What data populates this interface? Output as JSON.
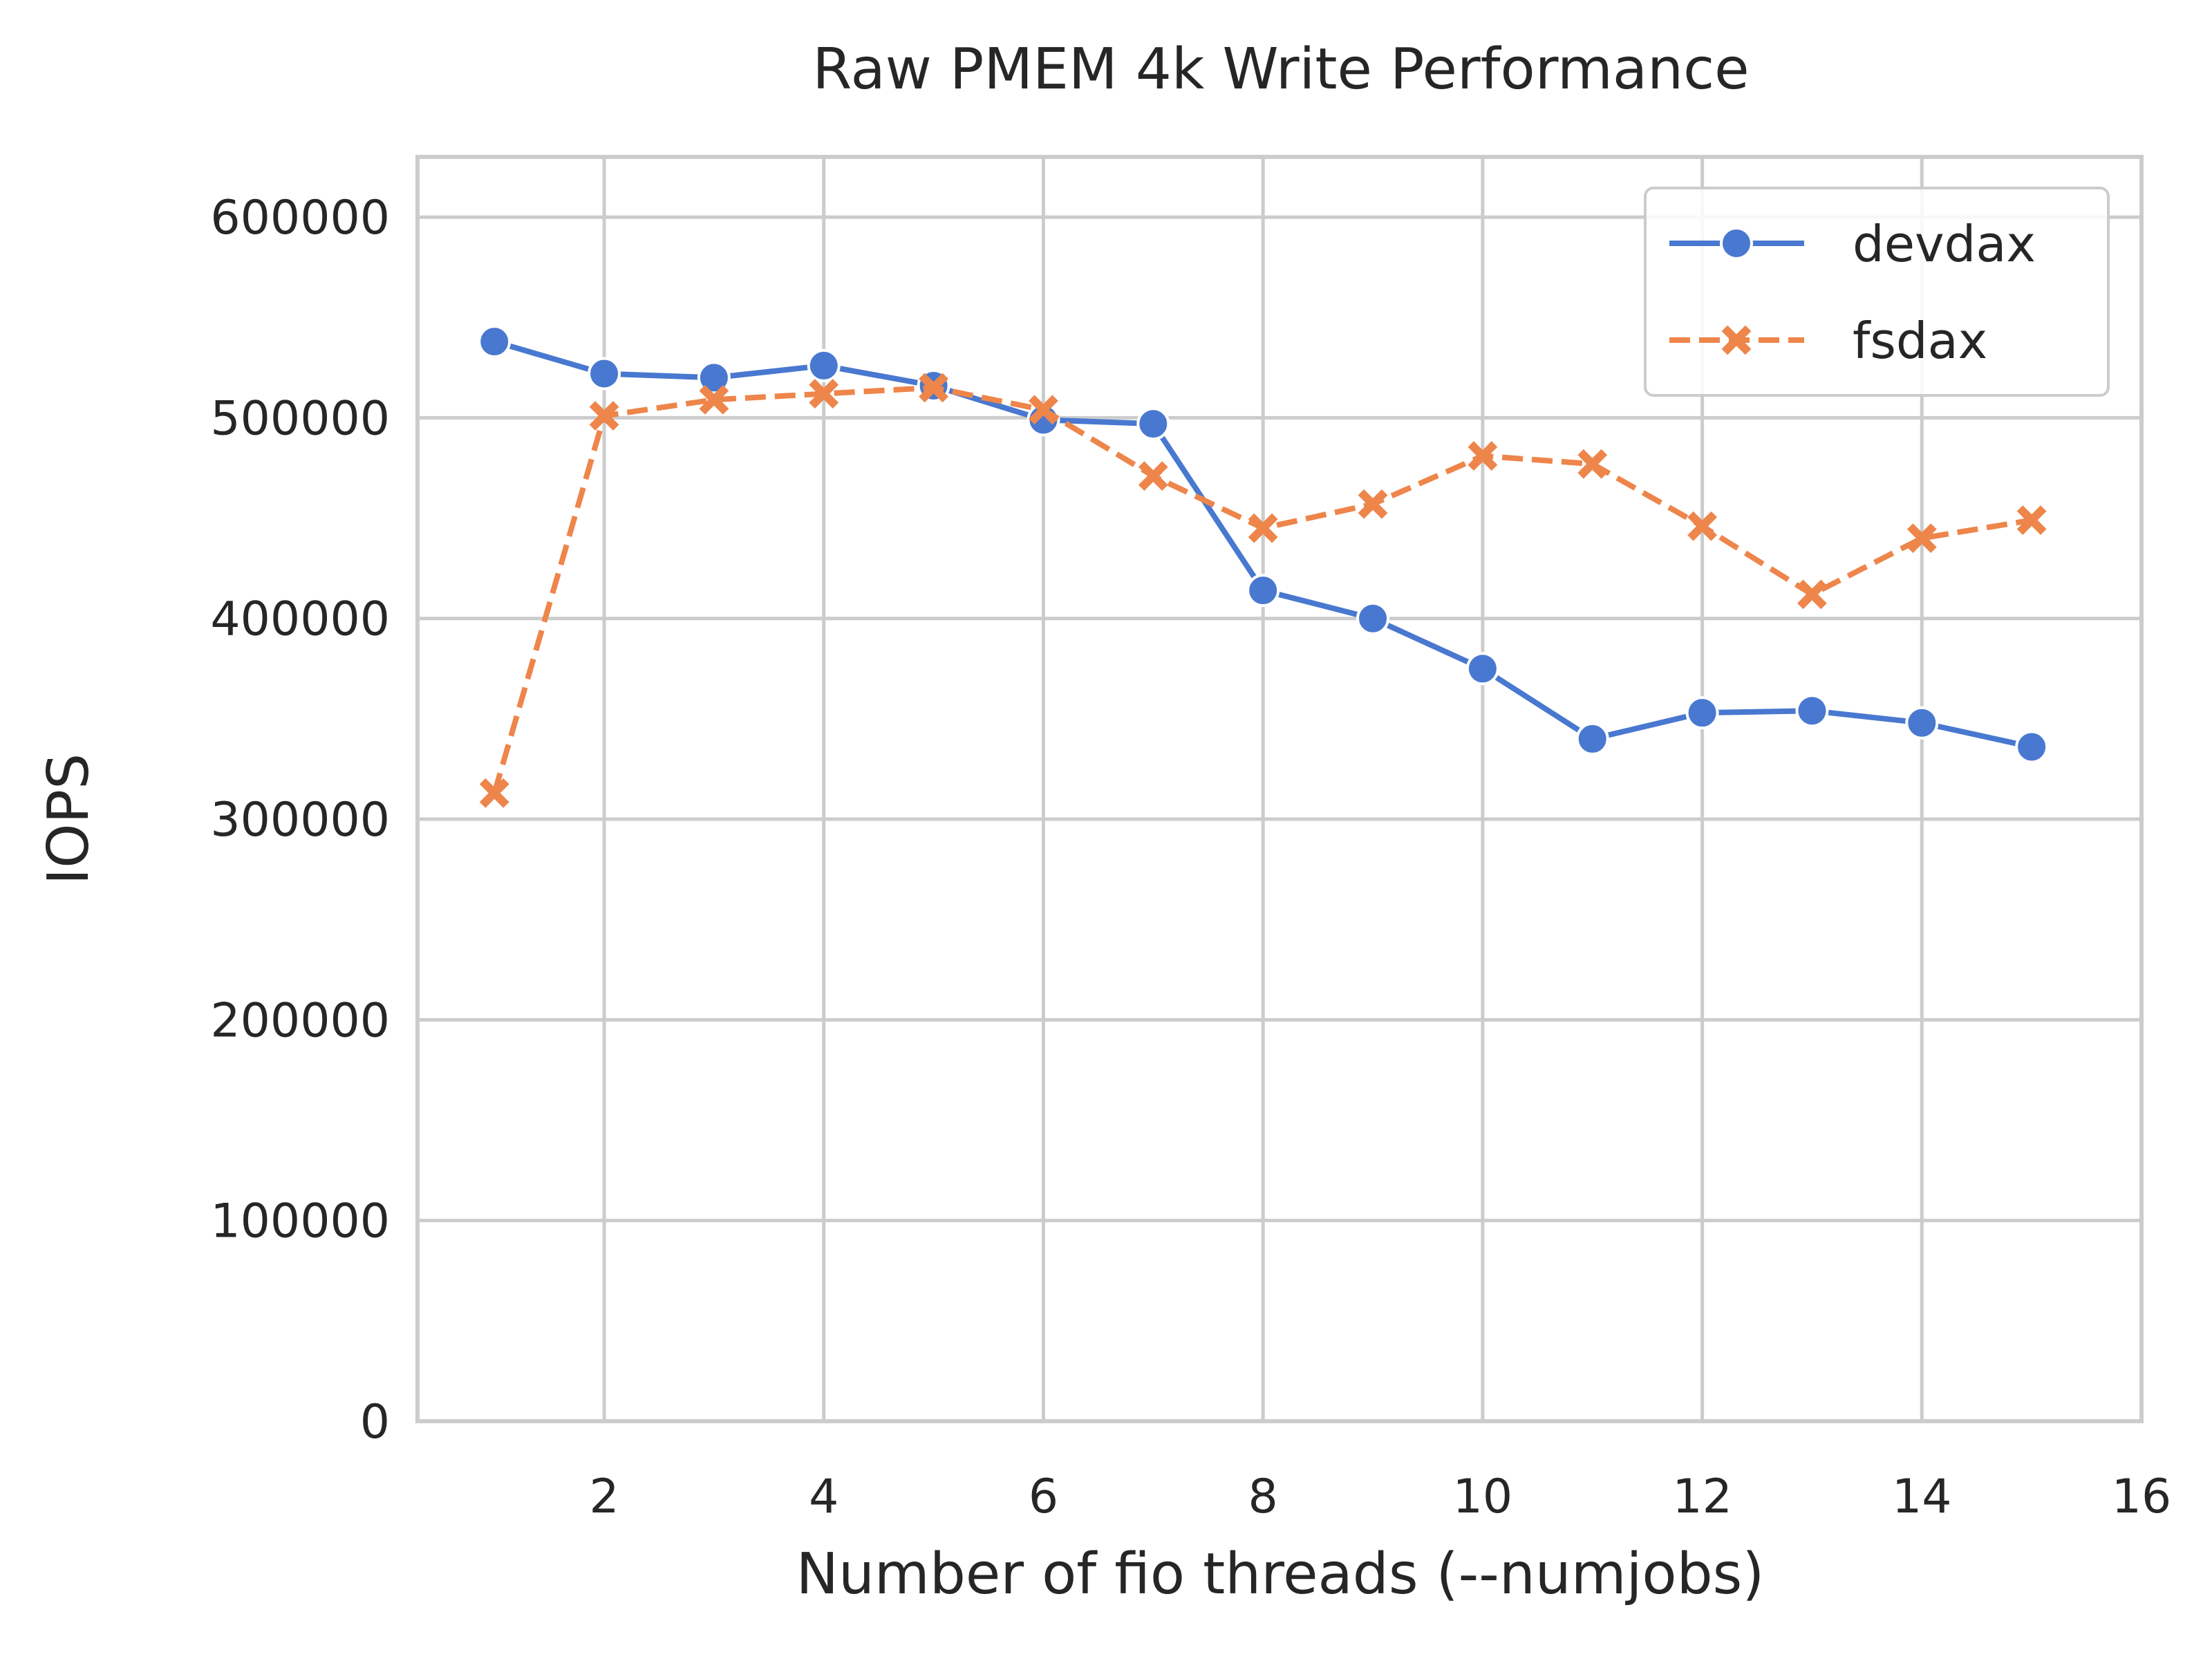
{
  "chart_data": {
    "type": "line",
    "title": "Raw PMEM 4k Write Performance",
    "xlabel": "Number of fio threads (--numjobs)",
    "ylabel": "IOPS",
    "xlim": [
      0.3,
      16
    ],
    "ylim": [
      0,
      630000
    ],
    "xticks": [
      2,
      4,
      6,
      8,
      10,
      12,
      14,
      16
    ],
    "yticks": [
      0,
      100000,
      200000,
      300000,
      400000,
      500000,
      600000
    ],
    "x": [
      1,
      2,
      3,
      4,
      5,
      6,
      7,
      8,
      9,
      10,
      11,
      12,
      13,
      14,
      15
    ],
    "grid": true,
    "legend_position": "top-right",
    "series": [
      {
        "name": "devdax",
        "color": "#4878d0",
        "marker": "circle",
        "linestyle": "solid",
        "values": [
          538000,
          522000,
          520000,
          526000,
          516000,
          499000,
          497000,
          414000,
          400000,
          375000,
          340000,
          353000,
          354000,
          348000,
          336000
        ]
      },
      {
        "name": "fsdax",
        "color": "#ee854a",
        "marker": "x",
        "linestyle": "dashed",
        "values": [
          313000,
          501000,
          509000,
          512000,
          515000,
          504000,
          471000,
          445000,
          457000,
          481000,
          477000,
          446000,
          412000,
          440000,
          449000
        ]
      }
    ]
  }
}
